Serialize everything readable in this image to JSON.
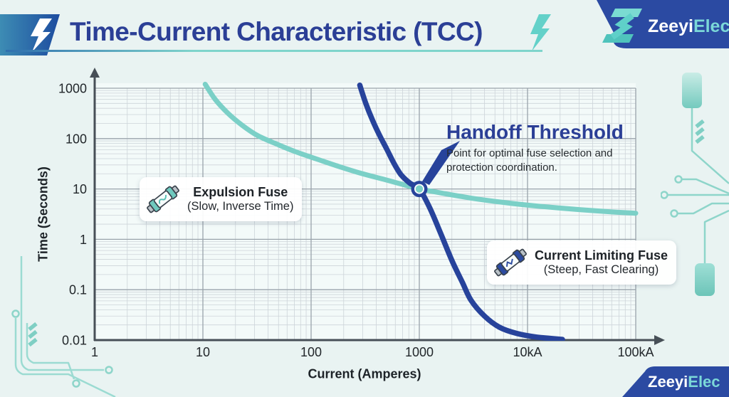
{
  "header": {
    "title": "Time-Current Characteristic (TCC)"
  },
  "brand": {
    "primary": "Zeeyi",
    "secondary": "Elec"
  },
  "annotation": {
    "title": "Handoff Threshold",
    "line1": "Point for optimal fuse selection and",
    "line2": "protection coordination."
  },
  "legend": {
    "expulsion": {
      "title": "Expulsion Fuse",
      "subtitle": "(Slow, Inverse Time)"
    },
    "limiting": {
      "title": "Current Limiting Fuse",
      "subtitle": "(Steep, Fast Clearing)"
    }
  },
  "icons": {
    "banner_left": "lightning-bolt",
    "title_right": "lightning-bolt",
    "logo_mark": "z-lightning-mark",
    "expulsion_card": "expulsion-fuse-cartridge",
    "limiting_card": "current-limiting-fuse-cartridge"
  },
  "colors": {
    "navy": "#27439b",
    "teal": "#7bd0c7",
    "title_navy": "#2b3f96",
    "axis": "#474f57",
    "grid_major": "#9aa3ab",
    "grid_minor": "#cdd4d9",
    "bg": "#e9f3f2",
    "plot_bg": "#f3faf9",
    "text": "#22272b"
  },
  "chart_data": {
    "type": "line",
    "title": "Time-Current Characteristic (TCC)",
    "xlabel": "Current (Amperes)",
    "ylabel": "Time (Seconds)",
    "x_scale": "log",
    "y_scale": "log",
    "xlim": [
      1,
      100000
    ],
    "ylim": [
      0.01,
      1000
    ],
    "grid": "log major + minor",
    "legend_position": "on-chart cards",
    "x_ticks": [
      {
        "value": 1,
        "label": "1"
      },
      {
        "value": 10,
        "label": "10"
      },
      {
        "value": 100,
        "label": "100"
      },
      {
        "value": 1000,
        "label": "1000"
      },
      {
        "value": 10000,
        "label": "10kA"
      },
      {
        "value": 100000,
        "label": "100kA"
      }
    ],
    "y_ticks": [
      {
        "value": 1000,
        "label": "1000"
      },
      {
        "value": 100,
        "label": "100"
      },
      {
        "value": 10,
        "label": "10"
      },
      {
        "value": 1,
        "label": "1"
      },
      {
        "value": 0.1,
        "label": "0.1"
      },
      {
        "value": 0.01,
        "label": "0.01"
      }
    ],
    "series": [
      {
        "id": "expulsion-fuse",
        "name": "Expulsion Fuse (Slow, Inverse Time)",
        "color": "#7bd0c7",
        "width": 7,
        "points": [
          [
            10.5,
            1200
          ],
          [
            13,
            600
          ],
          [
            17,
            320
          ],
          [
            23,
            185
          ],
          [
            32,
            115
          ],
          [
            48,
            78
          ],
          [
            70,
            56
          ],
          [
            110,
            40
          ],
          [
            180,
            28
          ],
          [
            300,
            20
          ],
          [
            500,
            15
          ],
          [
            750,
            11.8
          ],
          [
            1000,
            10
          ],
          [
            1600,
            8.3
          ],
          [
            3000,
            6.6
          ],
          [
            6000,
            5.4
          ],
          [
            12000,
            4.6
          ],
          [
            30000,
            3.9
          ],
          [
            60000,
            3.5
          ],
          [
            100000,
            3.3
          ]
        ]
      },
      {
        "id": "current-limiting-fuse",
        "name": "Current Limiting Fuse (Steep, Fast Clearing)",
        "color": "#27439b",
        "width": 7.5,
        "points": [
          [
            282,
            1150
          ],
          [
            320,
            500
          ],
          [
            370,
            230
          ],
          [
            430,
            115
          ],
          [
            500,
            62
          ],
          [
            580,
            33
          ],
          [
            680,
            19
          ],
          [
            820,
            13
          ],
          [
            1000,
            10
          ],
          [
            1250,
            4.2
          ],
          [
            1590,
            1.25
          ],
          [
            2000,
            0.38
          ],
          [
            2500,
            0.14
          ],
          [
            3000,
            0.062
          ],
          [
            4000,
            0.03
          ],
          [
            5500,
            0.018
          ],
          [
            8000,
            0.0135
          ],
          [
            12000,
            0.0115
          ],
          [
            21000,
            0.0103
          ]
        ]
      }
    ],
    "handoff_point": {
      "x": 1000,
      "y": 10,
      "label": "Handoff Threshold"
    }
  }
}
